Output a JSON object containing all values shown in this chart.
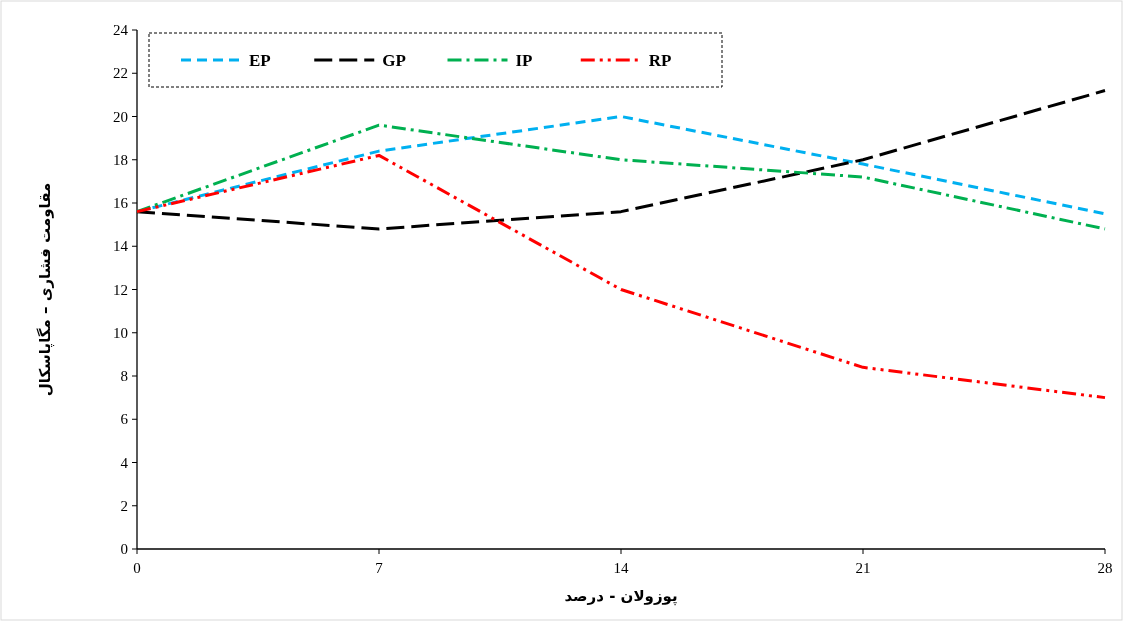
{
  "chart_data": {
    "type": "line",
    "xlabel": "پوزولان - درصد",
    "ylabel": "مقاومت فشاری – مگاپاسکال",
    "x": [
      0,
      7,
      14,
      21,
      28
    ],
    "series": [
      {
        "name": "EP",
        "color": "#00b0f0",
        "line_style": "dashed",
        "values": [
          15.6,
          18.4,
          20.0,
          17.8,
          15.5
        ]
      },
      {
        "name": "GP",
        "color": "#000000",
        "line_style": "longdash",
        "values": [
          15.6,
          14.8,
          15.6,
          18.0,
          21.2
        ]
      },
      {
        "name": "IP",
        "color": "#00b050",
        "line_style": "dashdot",
        "values": [
          15.6,
          19.6,
          18.0,
          17.2,
          14.8
        ]
      },
      {
        "name": "RP",
        "color": "#ff0000",
        "line_style": "dashdotdot",
        "values": [
          15.6,
          18.2,
          12.0,
          8.4,
          7.0
        ]
      }
    ],
    "xlim": [
      0,
      28
    ],
    "xticks": [
      0,
      7,
      14,
      21,
      28
    ],
    "ylim": [
      0,
      24
    ],
    "yticks": [
      0,
      2,
      4,
      6,
      8,
      10,
      12,
      14,
      16,
      18,
      20,
      22,
      24
    ],
    "grid": false,
    "legend": "top left",
    "marker": "none"
  }
}
